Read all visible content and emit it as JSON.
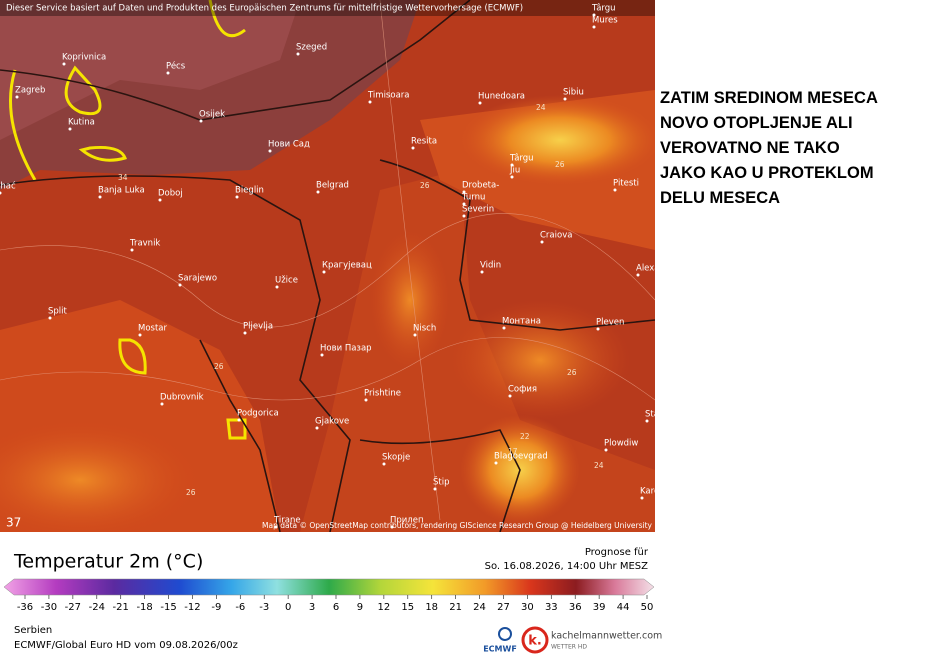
{
  "map": {
    "header": "Dieser Service basiert auf Daten und Produkten des Europäischen Zentrums für mittelfristige Wettervorhersage (ECMWF)",
    "corner": "37",
    "attribution": "Map data © OpenStreetMap contributors, rendering GIScience Research Group @ Heidelberg University",
    "cities": [
      "Koprivnica",
      "Pécs",
      "Szeged",
      "Zagreb",
      "Kutina",
      "Osijek",
      "Timisoara",
      "Hunedoara",
      "Sibiu",
      "Târgu",
      "Mures",
      "Resita",
      "Нови Сад",
      "Târgu",
      "Jiu",
      "Pitesti",
      "ihać",
      "Banja Luka",
      "Doboj",
      "Bieglin",
      "Belgrad",
      "Drobeta-",
      "Turnu",
      "Severin",
      "Craiova",
      "Travnik",
      "Крагујевац",
      "Vidin",
      "Alexand",
      "Sarajewo",
      "Užice",
      "Split",
      "Mostar",
      "Pljevlja",
      "Nisch",
      "Монтана",
      "Pleven",
      "Нови Пазар",
      "Prishtine",
      "София",
      "Dubrovnik",
      "Podgorica",
      "Gjakove",
      "Stara",
      "Plowdiw",
      "Skopje",
      "Blagoevgrad",
      "Štip",
      "Kardsc",
      "Tirane",
      "Прилеп"
    ],
    "contour_labels": [
      "34",
      "26",
      "24",
      "26",
      "26",
      "26",
      "26",
      "22",
      "24",
      "17"
    ]
  },
  "annotation": {
    "lines": [
      "ZATIM SREDINOM MESECA",
      "NOVO OTOPLJENJE ALI",
      "VEROVATNO NE TAKO",
      "JAKO KAO U PROTEKLOM",
      "DELU MESECA"
    ]
  },
  "legend": {
    "title": "Temperatur 2m (°C)",
    "forecast_label": "Prognose für",
    "forecast_time": "So. 16.08.2026, 14:00 Uhr MESZ",
    "ticks": [
      -36,
      -30,
      -27,
      -24,
      -21,
      -18,
      -15,
      -12,
      -9,
      -6,
      -3,
      0,
      3,
      6,
      9,
      12,
      15,
      18,
      21,
      24,
      27,
      30,
      33,
      36,
      39,
      44,
      50
    ]
  },
  "footer": {
    "region": "Serbien",
    "model": "ECMWF/Global Euro HD vom  09.08.2026/00z",
    "logo_ecmwf": "ECMWF",
    "site": "kachelmannwetter.com",
    "site_sub": "WETTER HD"
  }
}
